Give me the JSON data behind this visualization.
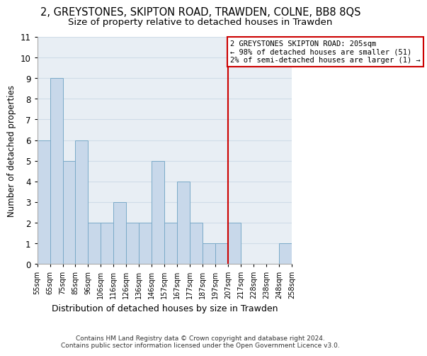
{
  "title": "2, GREYSTONES, SKIPTON ROAD, TRAWDEN, COLNE, BB8 8QS",
  "subtitle": "Size of property relative to detached houses in Trawden",
  "xlabel": "Distribution of detached houses by size in Trawden",
  "ylabel": "Number of detached properties",
  "bin_labels": [
    "55sqm",
    "65sqm",
    "75sqm",
    "85sqm",
    "96sqm",
    "106sqm",
    "116sqm",
    "126sqm",
    "136sqm",
    "146sqm",
    "157sqm",
    "167sqm",
    "177sqm",
    "187sqm",
    "197sqm",
    "207sqm",
    "217sqm",
    "228sqm",
    "238sqm",
    "248sqm",
    "258sqm"
  ],
  "bar_values": [
    6,
    9,
    5,
    6,
    2,
    2,
    3,
    2,
    2,
    5,
    2,
    4,
    2,
    1,
    1,
    2,
    0,
    0,
    0,
    1
  ],
  "bar_color": "#c8d8ea",
  "bar_edgecolor": "#7aaac8",
  "ylim": [
    0,
    11
  ],
  "yticks": [
    0,
    1,
    2,
    3,
    4,
    5,
    6,
    7,
    8,
    9,
    10,
    11
  ],
  "red_line_bin": 15,
  "annotation_text": "2 GREYSTONES SKIPTON ROAD: 205sqm\n← 98% of detached houses are smaller (51)\n2% of semi-detached houses are larger (1) →",
  "annotation_box_color": "#ffffff",
  "annotation_box_edgecolor": "#cc0000",
  "red_line_color": "#cc0000",
  "footer_text": "Contains HM Land Registry data © Crown copyright and database right 2024.\nContains public sector information licensed under the Open Government Licence v3.0.",
  "title_fontsize": 10.5,
  "subtitle_fontsize": 9.5,
  "xlabel_fontsize": 9,
  "ylabel_fontsize": 8.5,
  "grid_color": "#d0dce8",
  "background_color": "#e8eef4"
}
